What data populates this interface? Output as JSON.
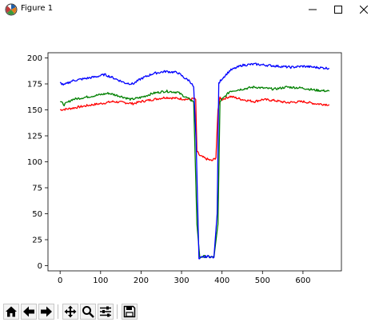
{
  "window": {
    "title": "Figure 1",
    "icons": [
      "matplotlib-icon",
      "minimize-icon",
      "maximize-icon",
      "close-icon"
    ]
  },
  "toolbar": {
    "buttons": [
      "home-icon",
      "back-arrow-icon",
      "forward-arrow-icon",
      "pan-icon",
      "zoom-icon",
      "configure-subplots-icon",
      "save-icon"
    ]
  },
  "chart_data": {
    "type": "line",
    "title": "",
    "xlabel": "",
    "ylabel": "",
    "xlim": [
      -30,
      695
    ],
    "ylim": [
      -5,
      205
    ],
    "xticks": [
      0,
      100,
      200,
      300,
      400,
      500,
      600
    ],
    "yticks": [
      0,
      25,
      50,
      75,
      100,
      125,
      150,
      175,
      200
    ],
    "grid": false,
    "series": [
      {
        "color": "#ff0000",
        "x": [
          0,
          20,
          50,
          80,
          100,
          130,
          160,
          180,
          200,
          230,
          260,
          290,
          320,
          330,
          335,
          338,
          345,
          360,
          375,
          385,
          390,
          395,
          400,
          420,
          450,
          480,
          500,
          530,
          560,
          600,
          630,
          665
        ],
        "y": [
          150,
          151,
          153,
          155,
          156,
          158,
          157,
          156,
          158,
          160,
          162,
          161,
          160,
          161,
          160,
          110,
          106,
          103,
          101,
          104,
          150,
          162,
          160,
          163,
          160,
          158,
          160,
          159,
          157,
          158,
          156,
          155
        ]
      },
      {
        "color": "#008000",
        "x": [
          0,
          10,
          30,
          60,
          90,
          120,
          150,
          175,
          200,
          230,
          260,
          290,
          320,
          330,
          338,
          345,
          355,
          380,
          390,
          395,
          400,
          420,
          450,
          480,
          500,
          530,
          560,
          600,
          630,
          665
        ],
        "y": [
          158,
          155,
          160,
          162,
          164,
          166,
          163,
          160,
          162,
          166,
          168,
          167,
          160,
          158,
          40,
          8,
          9,
          8,
          40,
          158,
          160,
          168,
          170,
          172,
          171,
          170,
          172,
          171,
          169,
          168
        ]
      },
      {
        "color": "#0000ff",
        "x": [
          0,
          10,
          30,
          60,
          90,
          110,
          130,
          160,
          180,
          200,
          230,
          260,
          290,
          310,
          320,
          330,
          336,
          343,
          350,
          365,
          380,
          388,
          392,
          396,
          400,
          420,
          450,
          480,
          510,
          540,
          570,
          600,
          630,
          665
        ],
        "y": [
          176,
          174,
          178,
          180,
          182,
          184,
          181,
          176,
          175,
          180,
          185,
          187,
          186,
          180,
          178,
          172,
          120,
          6,
          8,
          9,
          8,
          50,
          175,
          178,
          180,
          188,
          193,
          194,
          193,
          192,
          191,
          192,
          191,
          190
        ]
      }
    ]
  }
}
